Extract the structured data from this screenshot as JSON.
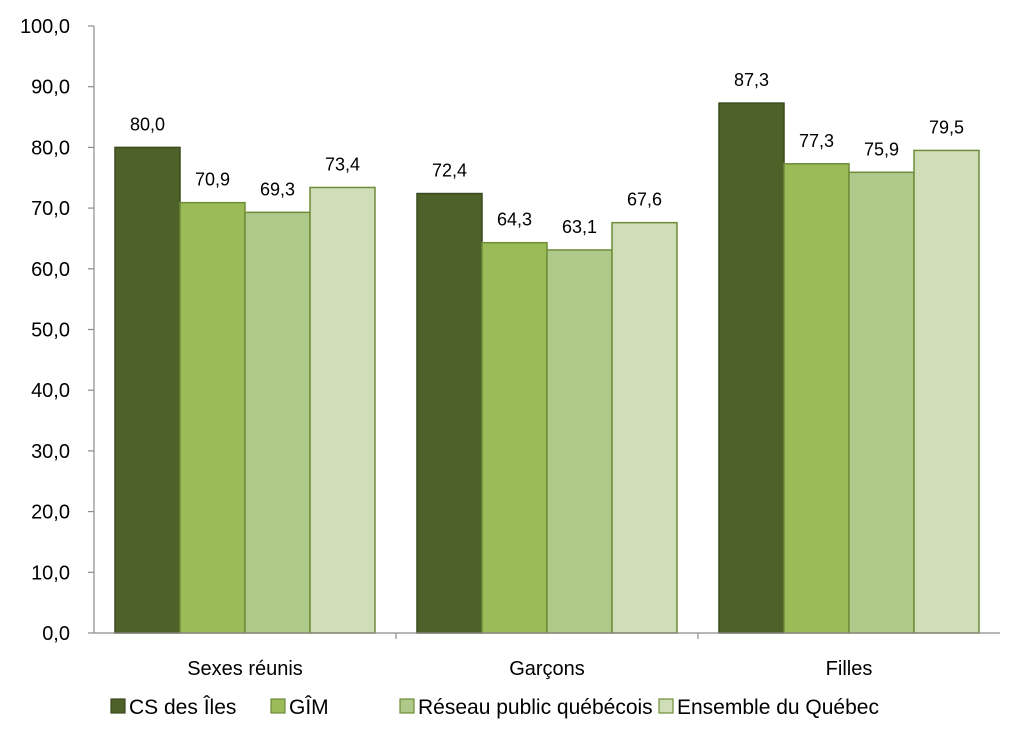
{
  "chart_data": {
    "type": "bar",
    "categories": [
      "Sexes réunis",
      "Garçons",
      "Filles"
    ],
    "series": [
      {
        "name": "CS des Îles",
        "values": [
          80.0,
          72.4,
          87.3
        ],
        "labels": [
          "80,0",
          "72,4",
          "87,3"
        ],
        "color": "#4e6128",
        "stroke": "#3b4a1e"
      },
      {
        "name": "GÎM",
        "values": [
          70.9,
          64.3,
          77.3
        ],
        "labels": [
          "70,9",
          "64,3",
          "77,3"
        ],
        "color": "#9bbb59",
        "stroke": "#6f8c38"
      },
      {
        "name": "Réseau public québécois",
        "values": [
          69.3,
          63.1,
          75.9
        ],
        "labels": [
          "69,3",
          "63,1",
          "75,9"
        ],
        "color": "#afc98a",
        "stroke": "#6f8c38"
      },
      {
        "name": "Ensemble du Québec",
        "values": [
          73.4,
          67.6,
          79.5
        ],
        "labels": [
          "73,4",
          "67,6",
          "79,5"
        ],
        "color": "#d0deb8",
        "stroke": "#6f8c38"
      }
    ],
    "yticks": [
      "0,0",
      "10,0",
      "20,0",
      "30,0",
      "40,0",
      "50,0",
      "60,0",
      "70,0",
      "80,0",
      "90,0",
      "100,0"
    ],
    "ylim": [
      0,
      100
    ],
    "grid": false,
    "legend_position": "bottom"
  }
}
